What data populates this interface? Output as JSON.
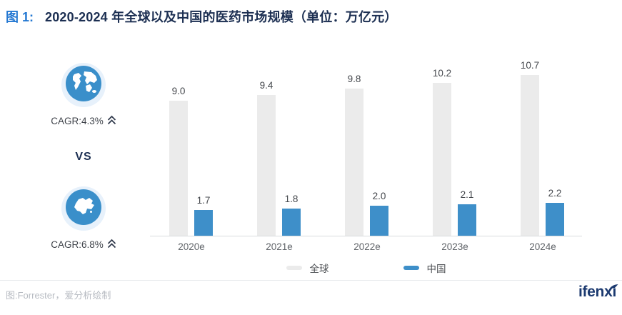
{
  "header": {
    "figure_label": "图 1:",
    "title": "2020-2024 年全球以及中国的医药市场规模（单位：万亿元）"
  },
  "comparison_panel": {
    "global_icon": "globe-icon",
    "global_cagr": "CAGR:4.3%",
    "vs_label": "VS",
    "china_icon": "china-map-icon",
    "china_cagr": "CAGR:6.8%"
  },
  "chart_data": {
    "type": "bar",
    "categories": [
      "2020e",
      "2021e",
      "2022e",
      "2023e",
      "2024e"
    ],
    "series": [
      {
        "name": "全球",
        "color": "#ebebeb",
        "values": [
          9.0,
          9.4,
          9.8,
          10.2,
          10.7
        ]
      },
      {
        "name": "中国",
        "color": "#3e8fc9",
        "values": [
          1.7,
          1.8,
          2.0,
          2.1,
          2.2
        ]
      }
    ],
    "title": "2020-2024 年全球以及中国的医药市场规模（单位：万亿元）",
    "unit": "万亿元",
    "ylim": [
      0,
      11.5
    ],
    "grid": false,
    "value_labels": true,
    "legend_position": "bottom"
  },
  "footer": {
    "source": "图:Forrester，爱分析绘制",
    "logo": "ifenxi"
  },
  "colors": {
    "accent_blue": "#3e8fc9",
    "series_gray": "#ebebeb",
    "title_navy": "#1c2f52",
    "label_blue": "#2478d2",
    "icon_blue": "#3a8fca",
    "icon_halo": "#e7f1fb",
    "axis_line": "#d9dbde",
    "logo_navy": "#1c3a70"
  }
}
